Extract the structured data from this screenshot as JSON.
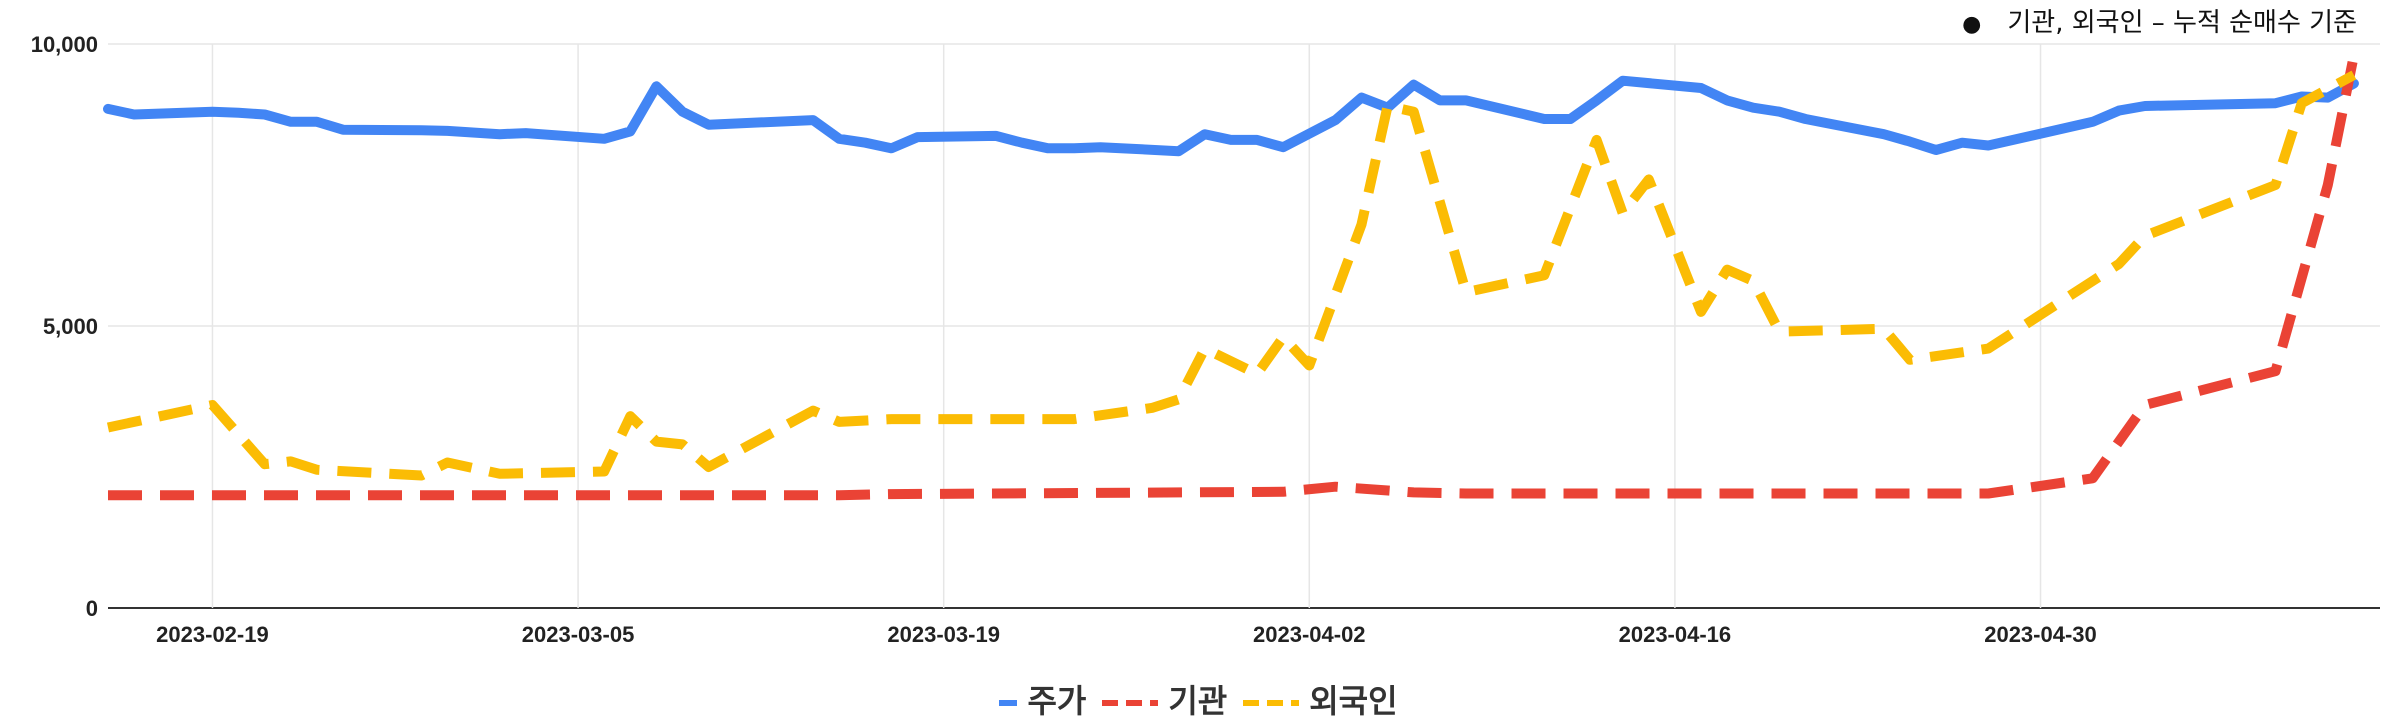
{
  "note": "기관, 외국인 – 누적 순매수 기준",
  "chart_data": {
    "type": "line",
    "ylim": [
      0,
      10000
    ],
    "yticks": [
      "0",
      "5,000",
      "10,000"
    ],
    "ytick_values": [
      0,
      5000,
      10000
    ],
    "xlim": [
      "2023-02-15",
      "2023-05-13"
    ],
    "xticks": [
      "2023-02-19",
      "2023-03-05",
      "2023-03-19",
      "2023-04-02",
      "2023-04-16",
      "2023-04-30"
    ],
    "grid": true,
    "legend_position": "bottom",
    "series": [
      {
        "name": "주가",
        "color": "#4285F4",
        "dash": "solid",
        "points": [
          [
            "2023-02-15",
            8850
          ],
          [
            "2023-02-16",
            8750
          ],
          [
            "2023-02-19",
            8800
          ],
          [
            "2023-02-20",
            8780
          ],
          [
            "2023-02-21",
            8750
          ],
          [
            "2023-02-22",
            8620
          ],
          [
            "2023-02-23",
            8620
          ],
          [
            "2023-02-24",
            8480
          ],
          [
            "2023-02-27",
            8470
          ],
          [
            "2023-02-28",
            8460
          ],
          [
            "2023-03-02",
            8400
          ],
          [
            "2023-03-03",
            8420
          ],
          [
            "2023-03-06",
            8320
          ],
          [
            "2023-03-07",
            8450
          ],
          [
            "2023-03-08",
            9250
          ],
          [
            "2023-03-09",
            8800
          ],
          [
            "2023-03-10",
            8570
          ],
          [
            "2023-03-14",
            8650
          ],
          [
            "2023-03-15",
            8320
          ],
          [
            "2023-03-16",
            8250
          ],
          [
            "2023-03-17",
            8150
          ],
          [
            "2023-03-18",
            8350
          ],
          [
            "2023-03-21",
            8370
          ],
          [
            "2023-03-22",
            8250
          ],
          [
            "2023-03-23",
            8150
          ],
          [
            "2023-03-24",
            8150
          ],
          [
            "2023-03-25",
            8170
          ],
          [
            "2023-03-28",
            8100
          ],
          [
            "2023-03-29",
            8400
          ],
          [
            "2023-03-30",
            8300
          ],
          [
            "2023-03-31",
            8300
          ],
          [
            "2023-04-01",
            8170
          ],
          [
            "2023-04-03",
            8650
          ],
          [
            "2023-04-04",
            9050
          ],
          [
            "2023-04-05",
            8870
          ],
          [
            "2023-04-06",
            9280
          ],
          [
            "2023-04-07",
            9000
          ],
          [
            "2023-04-08",
            9000
          ],
          [
            "2023-04-11",
            8670
          ],
          [
            "2023-04-12",
            8670
          ],
          [
            "2023-04-13",
            9000
          ],
          [
            "2023-04-14",
            9350
          ],
          [
            "2023-04-17",
            9220
          ],
          [
            "2023-04-18",
            9000
          ],
          [
            "2023-04-19",
            8870
          ],
          [
            "2023-04-20",
            8800
          ],
          [
            "2023-04-21",
            8670
          ],
          [
            "2023-04-24",
            8400
          ],
          [
            "2023-04-25",
            8270
          ],
          [
            "2023-04-26",
            8120
          ],
          [
            "2023-04-27",
            8250
          ],
          [
            "2023-04-28",
            8200
          ],
          [
            "2023-05-02",
            8620
          ],
          [
            "2023-05-03",
            8820
          ],
          [
            "2023-05-04",
            8900
          ],
          [
            "2023-05-09",
            8950
          ],
          [
            "2023-05-10",
            9070
          ],
          [
            "2023-05-11",
            9050
          ],
          [
            "2023-05-12",
            9300
          ]
        ]
      },
      {
        "name": "기관",
        "color": "#EA4335",
        "dash": "dashed",
        "points": [
          [
            "2023-02-15",
            2000
          ],
          [
            "2023-02-19",
            2000
          ],
          [
            "2023-02-22",
            2000
          ],
          [
            "2023-03-05",
            2000
          ],
          [
            "2023-03-15",
            2000
          ],
          [
            "2023-03-17",
            2020
          ],
          [
            "2023-04-01",
            2060
          ],
          [
            "2023-04-03",
            2150
          ],
          [
            "2023-04-06",
            2050
          ],
          [
            "2023-04-08",
            2030
          ],
          [
            "2023-04-28",
            2030
          ],
          [
            "2023-05-02",
            2300
          ],
          [
            "2023-05-04",
            3600
          ],
          [
            "2023-05-09",
            4200
          ],
          [
            "2023-05-11",
            7500
          ],
          [
            "2023-05-12",
            9800
          ]
        ]
      },
      {
        "name": "외국인",
        "color": "#FBBC04",
        "dash": "dashed",
        "points": [
          [
            "2023-02-15",
            3200
          ],
          [
            "2023-02-19",
            3600
          ],
          [
            "2023-02-21",
            2550
          ],
          [
            "2023-02-22",
            2600
          ],
          [
            "2023-02-23",
            2450
          ],
          [
            "2023-02-27",
            2350
          ],
          [
            "2023-02-28",
            2580
          ],
          [
            "2023-03-02",
            2380
          ],
          [
            "2023-03-06",
            2420
          ],
          [
            "2023-03-07",
            3400
          ],
          [
            "2023-03-08",
            2950
          ],
          [
            "2023-03-09",
            2900
          ],
          [
            "2023-03-10",
            2500
          ],
          [
            "2023-03-14",
            3500
          ],
          [
            "2023-03-15",
            3300
          ],
          [
            "2023-03-17",
            3350
          ],
          [
            "2023-03-24",
            3350
          ],
          [
            "2023-03-27",
            3550
          ],
          [
            "2023-03-28",
            3700
          ],
          [
            "2023-03-29",
            4600
          ],
          [
            "2023-03-31",
            4150
          ],
          [
            "2023-04-01",
            4800
          ],
          [
            "2023-04-02",
            4300
          ],
          [
            "2023-04-04",
            6800
          ],
          [
            "2023-04-05",
            8900
          ],
          [
            "2023-04-06",
            8800
          ],
          [
            "2023-04-08",
            5600
          ],
          [
            "2023-04-11",
            5900
          ],
          [
            "2023-04-13",
            8300
          ],
          [
            "2023-04-14",
            7000
          ],
          [
            "2023-04-15",
            7600
          ],
          [
            "2023-04-17",
            5250
          ],
          [
            "2023-04-18",
            6000
          ],
          [
            "2023-04-19",
            5800
          ],
          [
            "2023-04-20",
            4900
          ],
          [
            "2023-04-24",
            4950
          ],
          [
            "2023-04-25",
            4400
          ],
          [
            "2023-04-28",
            4600
          ],
          [
            "2023-05-02",
            5800
          ],
          [
            "2023-05-03",
            6100
          ],
          [
            "2023-05-04",
            6600
          ],
          [
            "2023-05-09",
            7500
          ],
          [
            "2023-05-10",
            8950
          ],
          [
            "2023-05-12",
            9450
          ]
        ]
      }
    ]
  }
}
